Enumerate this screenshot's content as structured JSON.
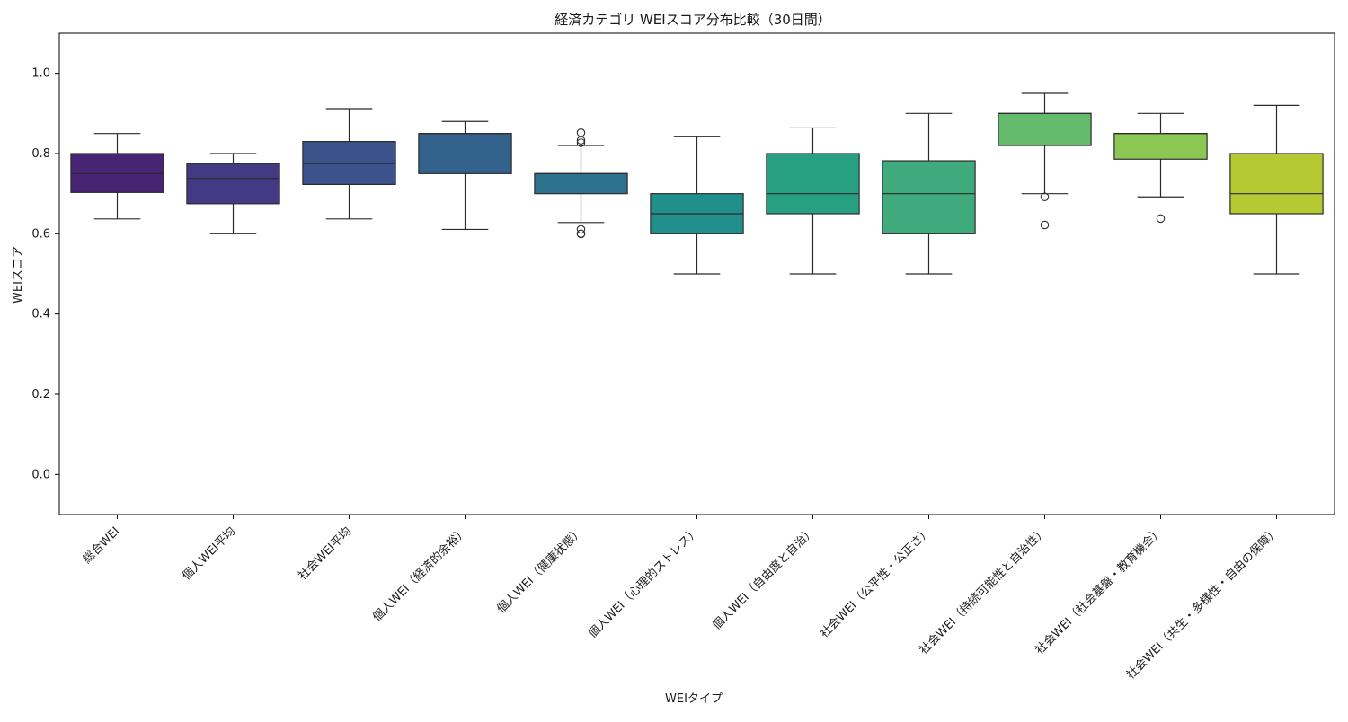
{
  "chart_data": {
    "type": "box",
    "title": "経済カテゴリ WEIスコア分布比較（30日間）",
    "xlabel": "WEIタイプ",
    "ylabel": "WEIスコア",
    "ylim": [
      -0.1,
      1.1
    ],
    "yticks": [
      "0.0",
      "0.2",
      "0.4",
      "0.6",
      "0.8",
      "1.0"
    ],
    "grid": false,
    "legend": "none",
    "categories": [
      {
        "label": "総合WEI",
        "color": "#482475",
        "whisker_low": 0.637,
        "q1": 0.703,
        "median": 0.75,
        "q3": 0.8,
        "whisker_high": 0.85,
        "outliers": []
      },
      {
        "label": "個人WEI平均",
        "color": "#443983",
        "whisker_low": 0.6,
        "q1": 0.675,
        "median": 0.738,
        "q3": 0.775,
        "whisker_high": 0.8,
        "outliers": []
      },
      {
        "label": "社会WEI平均",
        "color": "#3b528b",
        "whisker_low": 0.637,
        "q1": 0.723,
        "median": 0.775,
        "q3": 0.83,
        "whisker_high": 0.912,
        "outliers": []
      },
      {
        "label": "個人WEI（経済的余裕）",
        "color": "#33638d",
        "whisker_low": 0.611,
        "q1": 0.75,
        "median": 0.85,
        "q3": 0.85,
        "whisker_high": 0.88,
        "outliers": []
      },
      {
        "label": "個人WEI（健康状態）",
        "color": "#2c728e",
        "whisker_low": 0.628,
        "q1": 0.7,
        "median": 0.75,
        "q3": 0.75,
        "whisker_high": 0.82,
        "outliers": [
          0.852,
          0.833,
          0.827,
          0.611,
          0.6,
          0.6
        ]
      },
      {
        "label": "個人WEI（心理的ストレス）",
        "color": "#21908d",
        "whisker_low": 0.5,
        "q1": 0.6,
        "median": 0.65,
        "q3": 0.7,
        "whisker_high": 0.842,
        "outliers": []
      },
      {
        "label": "個人WEI（自由度と自治）",
        "color": "#27a082",
        "whisker_low": 0.5,
        "q1": 0.65,
        "median": 0.7,
        "q3": 0.8,
        "whisker_high": 0.864,
        "outliers": []
      },
      {
        "label": "社会WEI（公平性・公正さ）",
        "color": "#3fab7c",
        "whisker_low": 0.5,
        "q1": 0.6,
        "median": 0.7,
        "q3": 0.782,
        "whisker_high": 0.9,
        "outliers": []
      },
      {
        "label": "社会WEI（持続可能性と自治性）",
        "color": "#65bb6c",
        "whisker_low": 0.7,
        "q1": 0.82,
        "median": 0.9,
        "q3": 0.9,
        "whisker_high": 0.95,
        "outliers": [
          0.692,
          0.622
        ]
      },
      {
        "label": "社会WEI（社会基盤・教育機会）",
        "color": "#8cc653",
        "whisker_low": 0.692,
        "q1": 0.786,
        "median": 0.85,
        "q3": 0.85,
        "whisker_high": 0.9,
        "outliers": [
          0.638
        ]
      },
      {
        "label": "社会WEI（共生・多様性・自由の保障）",
        "color": "#b5c933",
        "whisker_low": 0.5,
        "q1": 0.65,
        "median": 0.7,
        "q3": 0.8,
        "whisker_high": 0.92,
        "outliers": []
      }
    ]
  }
}
